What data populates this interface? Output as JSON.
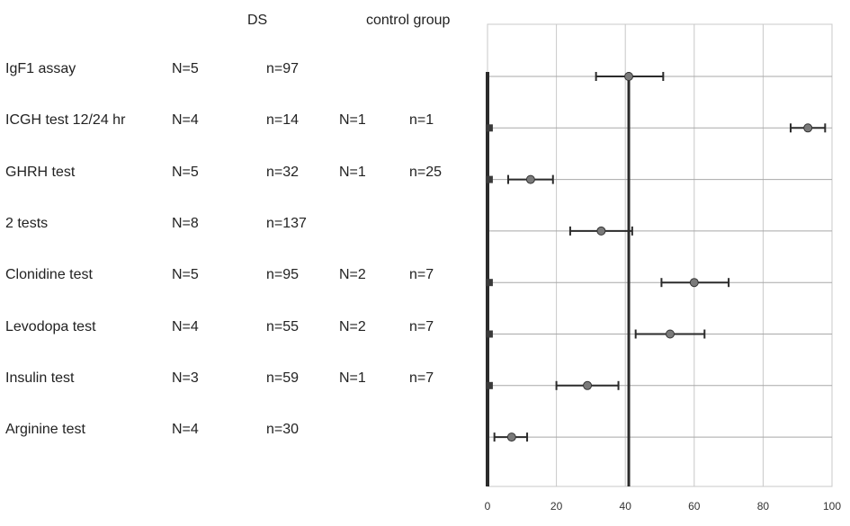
{
  "headers": {
    "ds": "DS",
    "control": "control group"
  },
  "rows": [
    {
      "label": "IgF1 assay",
      "ds_N": "N=5",
      "ds_n": "n=97",
      "ctrl_N": "",
      "ctrl_n": ""
    },
    {
      "label": "ICGH test 12/24 hr",
      "ds_N": "N=4",
      "ds_n": "n=14",
      "ctrl_N": "N=1",
      "ctrl_n": "n=1"
    },
    {
      "label": "GHRH test",
      "ds_N": "N=5",
      "ds_n": "n=32",
      "ctrl_N": "N=1",
      "ctrl_n": "n=25"
    },
    {
      "label": "2 tests",
      "ds_N": "N=8",
      "ds_n": "n=137",
      "ctrl_N": "",
      "ctrl_n": ""
    },
    {
      "label": "Clonidine test",
      "ds_N": "N=5",
      "ds_n": "n=95",
      "ctrl_N": "N=2",
      "ctrl_n": "n=7"
    },
    {
      "label": "Levodopa test",
      "ds_N": "N=4",
      "ds_n": "n=55",
      "ctrl_N": "N=2",
      "ctrl_n": "n=7"
    },
    {
      "label": "Insulin test",
      "ds_N": "N=3",
      "ds_n": "n=59",
      "ctrl_N": "N=1",
      "ctrl_n": "n=7"
    },
    {
      "label": "Arginine test",
      "ds_N": "N=4",
      "ds_n": "n=30",
      "ctrl_N": "",
      "ctrl_n": ""
    }
  ],
  "chart_data": {
    "type": "scatter",
    "categories": [
      "IgF1 assay",
      "ICGH test 12/24 hr",
      "GHRH test",
      "2 tests",
      "Clonidine test",
      "Levodopa test",
      "Insulin test",
      "Arginine test"
    ],
    "series": [
      {
        "values": [
          41,
          93,
          12.5,
          33,
          60,
          53,
          29,
          7
        ],
        "ci_low": [
          31.5,
          88,
          6,
          24,
          50.5,
          43,
          20,
          2
        ],
        "ci_high": [
          51,
          98,
          19,
          42,
          70,
          63,
          38,
          11.5
        ]
      },
      {
        "values": [
          null,
          0.5,
          0.5,
          null,
          0.5,
          0.5,
          0.5,
          null
        ]
      }
    ],
    "xlim": [
      0,
      100
    ],
    "x_ticks": [
      0,
      20,
      40,
      60,
      80,
      100
    ],
    "reference_line_x": 41,
    "grid": true,
    "colors": {
      "marker": "#7a7a7a",
      "line": "#2b2b2b",
      "grid": "#c8c8c8"
    }
  }
}
